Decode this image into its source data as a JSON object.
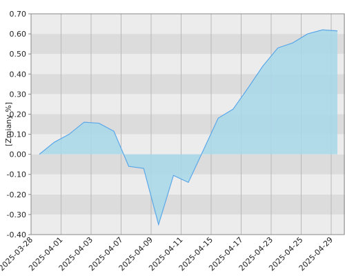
{
  "chart_data": {
    "type": "area",
    "y_label": "[Zmiany %]",
    "x_labels": [
      "2025-03-28",
      "2025-04-01",
      "2025-04-03",
      "2025-04-07",
      "2025-04-09",
      "2025-04-11",
      "2025-04-15",
      "2025-04-17",
      "2025-04-23",
      "2025-04-25",
      "2025-04-29"
    ],
    "values": [
      0.0,
      0.06,
      0.1,
      0.16,
      0.155,
      0.115,
      -0.06,
      -0.07,
      -0.35,
      -0.105,
      -0.14,
      0.02,
      0.18,
      0.225,
      0.33,
      0.44,
      0.53,
      0.555,
      0.6,
      0.62,
      0.615
    ],
    "color": "#5aa7e8",
    "fill": "#a8d8ea",
    "ylim": [
      -0.4,
      0.7
    ],
    "yticks": [
      {
        "value": -0.4,
        "label": "-0.40"
      },
      {
        "value": -0.3,
        "label": "-0.30"
      },
      {
        "value": -0.2,
        "label": "-0.20"
      },
      {
        "value": -0.1,
        "label": "-0.10"
      },
      {
        "value": 0,
        "label": "0.00"
      },
      {
        "value": 0.1,
        "label": "0.10"
      },
      {
        "value": 0.2,
        "label": "0.20"
      },
      {
        "value": 0.3,
        "label": "0.30"
      },
      {
        "value": 0.4,
        "label": "0.40"
      },
      {
        "value": 0.5,
        "label": "0.50"
      },
      {
        "value": 0.6,
        "label": "0.60"
      },
      {
        "value": 0.7,
        "label": "0.70"
      }
    ],
    "grid": true
  }
}
